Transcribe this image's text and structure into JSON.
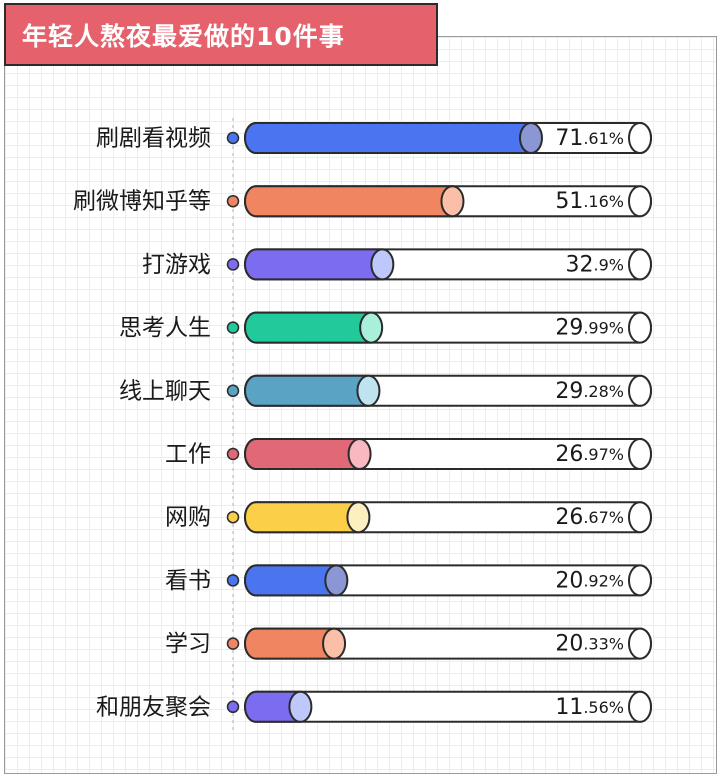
{
  "chart_data": {
    "type": "bar",
    "orientation": "horizontal",
    "title": "年轻人熬夜最爱做的10件事",
    "value_suffix": "%",
    "xlim": [
      0,
      100
    ],
    "categories": [
      "刷剧看视频",
      "刷微博知乎等",
      "打游戏",
      "思考人生",
      "线上聊天",
      "工作",
      "网购",
      "看书",
      "学习",
      "和朋友聚会"
    ],
    "values": [
      71.61,
      51.16,
      32.9,
      29.99,
      29.28,
      26.97,
      26.67,
      20.92,
      20.33,
      11.56
    ],
    "colors": [
      "#4a74f0",
      "#f08562",
      "#7b6cf0",
      "#22c99a",
      "#5aa3c4",
      "#e06877",
      "#fccf48",
      "#4a74f0",
      "#f08562",
      "#7b6cf0"
    ],
    "cap_colors": [
      "#8a97d4",
      "#fbbfa8",
      "#bfc8fb",
      "#a8f0dc",
      "#bfe4f0",
      "#f7b8c0",
      "#fdf0c0",
      "#8a97d4",
      "#fbbfa8",
      "#bfc8fb"
    ]
  }
}
